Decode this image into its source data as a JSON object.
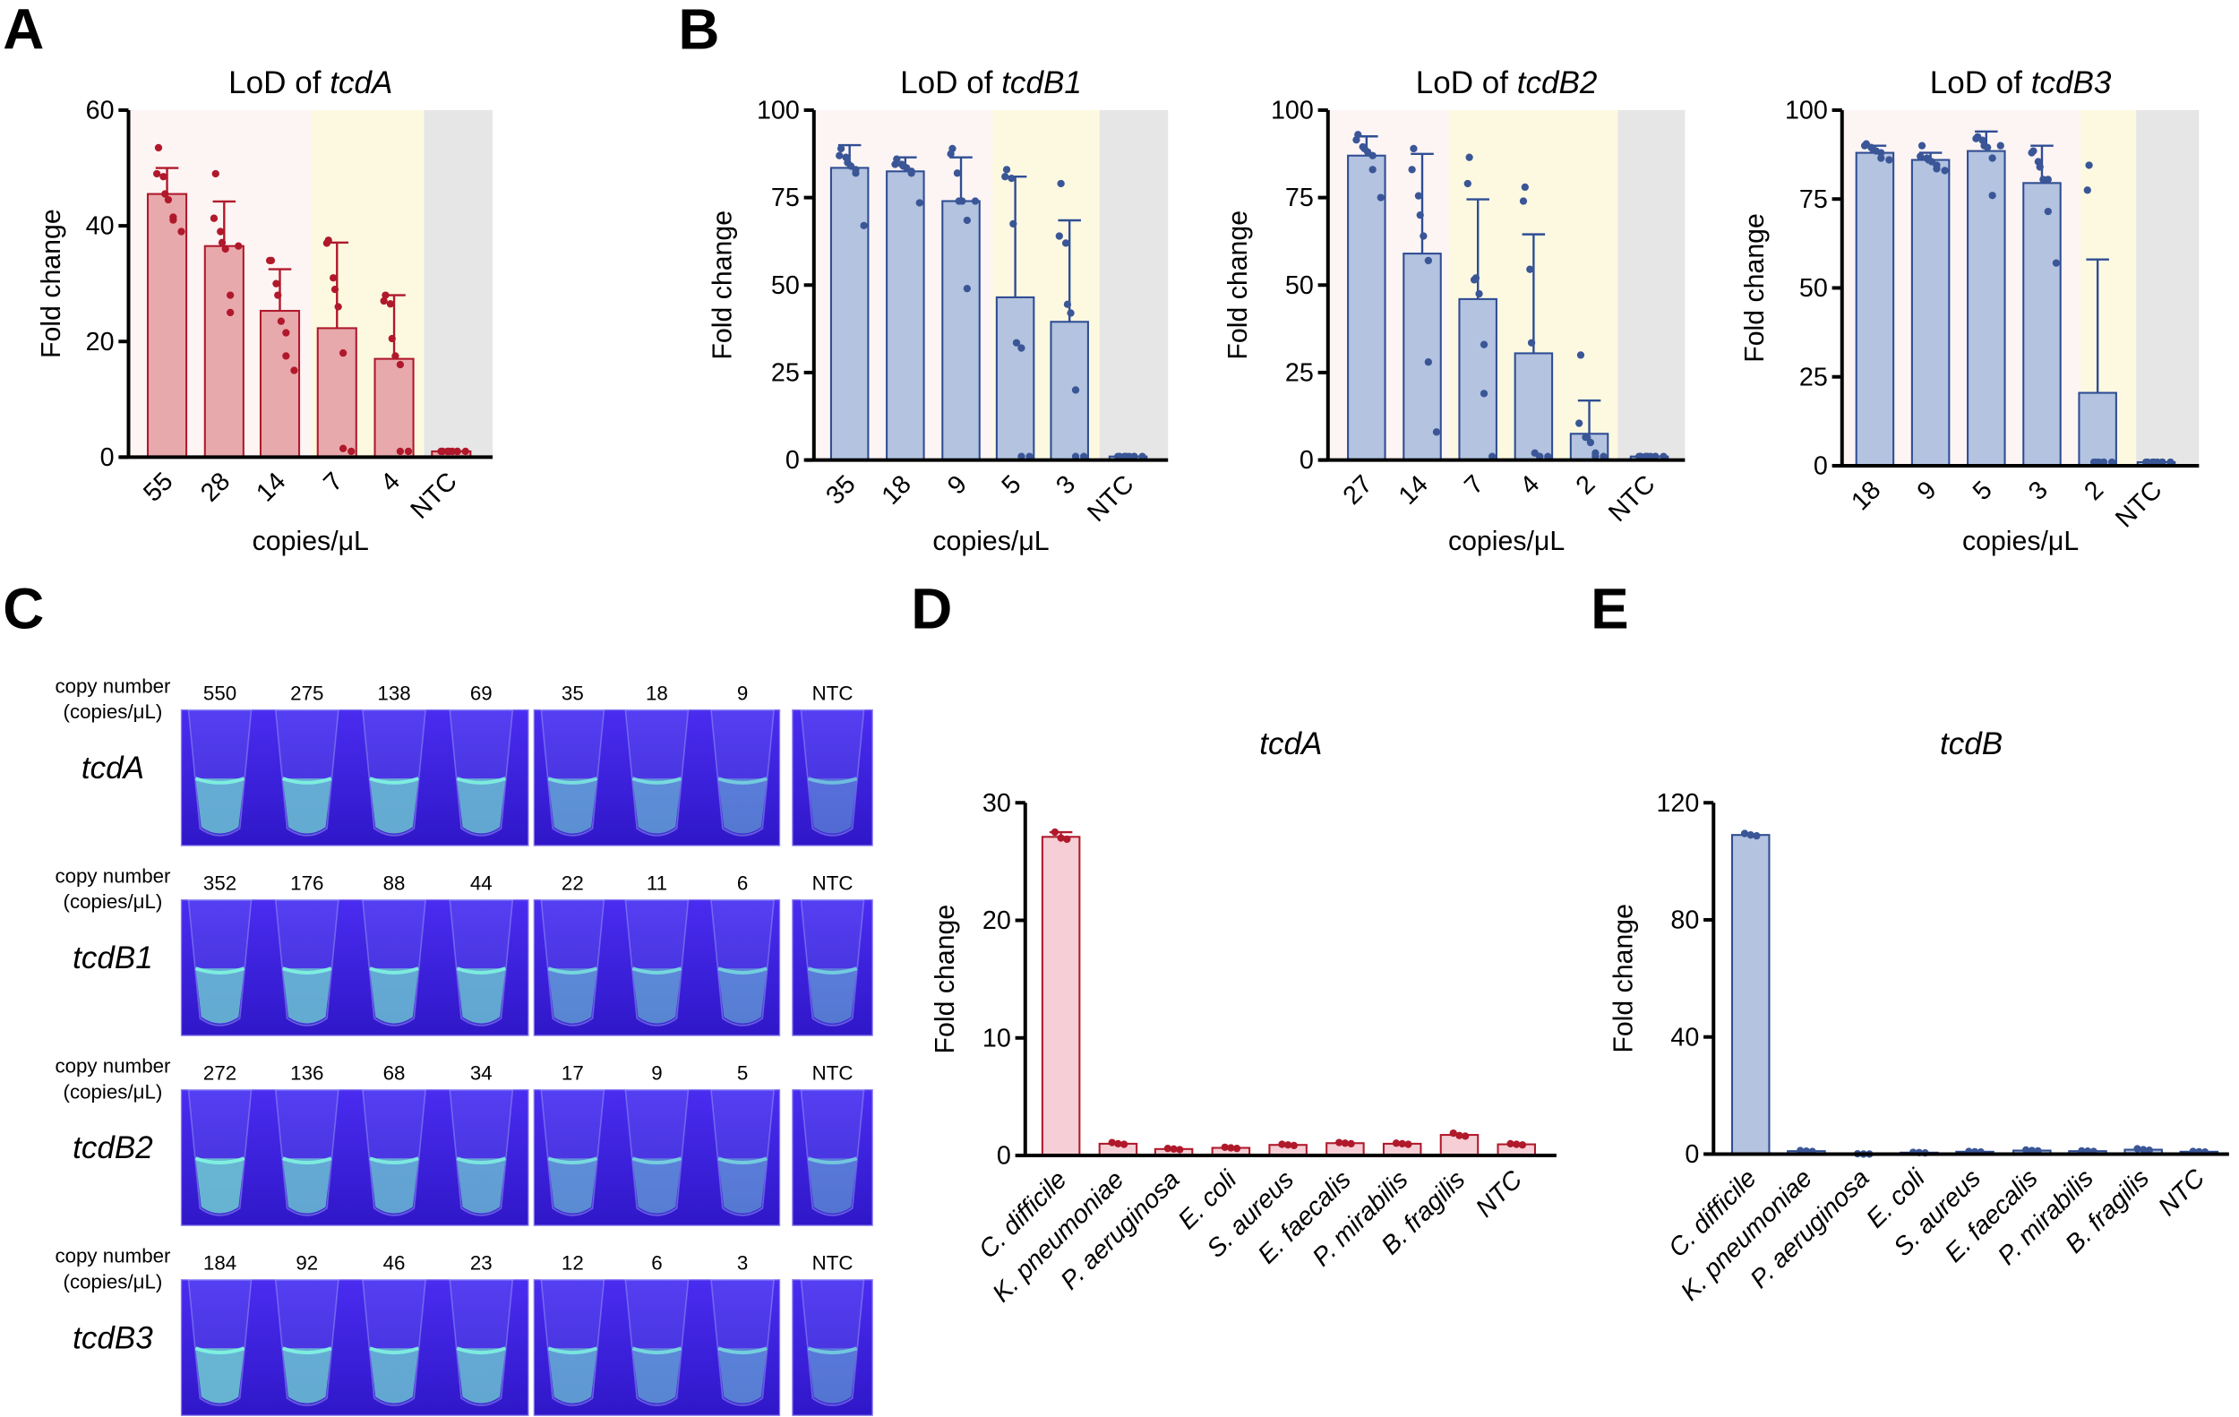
{
  "panel_letters": {
    "A": "A",
    "B": "B",
    "C": "C",
    "D": "D",
    "E": "E"
  },
  "colors": {
    "red_bar": "#e8a9ac",
    "red_line": "#b0192b",
    "pink_bar": "#f5cfd5",
    "blue_bar": "#b3c3e0",
    "blue_line": "#2f4d93",
    "blue_dot": "#3a5697",
    "band_pink": "#fdf4f4",
    "band_yellow": "#fdf9e1",
    "band_grey": "#e6e6e6",
    "uv_bg": "#3d22e6",
    "fluor": "#6fd6d0"
  },
  "chart_data": [
    {
      "id": "A",
      "type": "bar",
      "title_prefix": "LoD of ",
      "title_gene": "tcdA",
      "xlabel": "copies/μL",
      "ylabel": "Fold change",
      "ylim": [
        0,
        60
      ],
      "yticks": [
        "0",
        "20",
        "40",
        "60"
      ],
      "color": "red",
      "categories": [
        "55",
        "28",
        "14",
        "7",
        "4",
        "NTC"
      ],
      "values": [
        45.5,
        36.5,
        25.3,
        22.3,
        17,
        1
      ],
      "error_upper": [
        50,
        44.2,
        32.5,
        37.1,
        28,
        null
      ],
      "points": [
        [
          53.5,
          49,
          48.5,
          45.5,
          44.5,
          41.5,
          41,
          39
        ],
        [
          49,
          41.3,
          39,
          37.1,
          36,
          28,
          25,
          36.5
        ],
        [
          34,
          34,
          30,
          28,
          23.5,
          21.5,
          17.5,
          15
        ],
        [
          37.5,
          37,
          31,
          29,
          26,
          18,
          1.5,
          1
        ],
        [
          28,
          27,
          26.5,
          20.5,
          17.5,
          16,
          1,
          1
        ],
        [
          1,
          1,
          1,
          1,
          1,
          1,
          1,
          1
        ]
      ],
      "shading": [
        "positive",
        "positive",
        "positive",
        "marginal",
        "marginal",
        "ntc"
      ]
    },
    {
      "id": "B1",
      "type": "bar",
      "title_prefix": "LoD of ",
      "title_gene": "tcdB1",
      "xlabel": "copies/μL",
      "ylabel": "Fold change",
      "ylim": [
        0,
        100
      ],
      "yticks": [
        "0",
        "25",
        "50",
        "75",
        "100"
      ],
      "color": "blue",
      "categories": [
        "35",
        "18",
        "9",
        "5",
        "3",
        "NTC"
      ],
      "values": [
        83.5,
        82.5,
        74,
        46.5,
        39.5,
        1
      ],
      "error_upper": [
        90,
        86.5,
        86.5,
        81,
        68.5,
        null
      ],
      "points": [
        [
          89,
          87,
          86.5,
          85,
          84,
          83,
          82,
          67
        ],
        [
          86,
          84.5,
          84.5,
          84,
          83.5,
          82.5,
          82,
          73.5
        ],
        [
          89,
          87.5,
          82,
          74,
          74,
          68.5,
          49,
          74
        ],
        [
          83,
          81,
          80.5,
          67.5,
          33.5,
          32,
          1,
          1
        ],
        [
          79,
          64,
          62,
          44.5,
          42,
          20,
          1,
          1
        ],
        [
          1,
          1,
          1,
          1,
          1,
          1,
          1,
          1
        ]
      ]
    },
    {
      "id": "B2",
      "type": "bar",
      "title_prefix": "LoD of ",
      "title_gene": "tcdB2",
      "xlabel": "copies/μL",
      "ylabel": "Fold change",
      "ylim": [
        0,
        100
      ],
      "yticks": [
        "0",
        "25",
        "50",
        "75",
        "100"
      ],
      "color": "blue",
      "categories": [
        "27",
        "14",
        "7",
        "4",
        "2",
        "NTC"
      ],
      "values": [
        87,
        59,
        46,
        30.5,
        7.5,
        1
      ],
      "error_upper": [
        92.5,
        87.5,
        74.5,
        64.5,
        17,
        null
      ],
      "points": [
        [
          93,
          91.5,
          89.5,
          89,
          88,
          87,
          83,
          75
        ],
        [
          89,
          83,
          75.5,
          70,
          64,
          57,
          28,
          8
        ],
        [
          86.5,
          79,
          51.5,
          52,
          47.5,
          33,
          19,
          1
        ],
        [
          78,
          74,
          54.5,
          33.5,
          2,
          1,
          1,
          1
        ],
        [
          30,
          10.5,
          6.5,
          6.5,
          5,
          2,
          1,
          1
        ],
        [
          1,
          1,
          1,
          1,
          1,
          1,
          1,
          1
        ]
      ]
    },
    {
      "id": "B3",
      "type": "bar",
      "title_prefix": "LoD of ",
      "title_gene": "tcdB3",
      "xlabel": "copies/μL",
      "ylabel": "Fold change",
      "ylim": [
        0,
        100
      ],
      "yticks": [
        "0",
        "25",
        "50",
        "75",
        "100"
      ],
      "color": "blue",
      "categories": [
        "18",
        "9",
        "5",
        "3",
        "2",
        "NTC"
      ],
      "values": [
        88,
        86,
        88.5,
        79.5,
        20.5,
        1
      ],
      "error_upper": [
        90,
        88,
        94,
        90,
        58,
        null
      ],
      "points": [
        [
          90.5,
          90,
          89.5,
          89,
          88.5,
          88,
          86.5,
          86
        ],
        [
          90,
          87,
          86.5,
          86,
          85.5,
          84.5,
          83.5,
          83
        ],
        [
          92.5,
          92,
          91.5,
          90,
          89.5,
          86.5,
          76,
          90
        ],
        [
          88.5,
          88,
          85.5,
          84,
          80.5,
          80.5,
          71.5,
          57
        ],
        [
          84.5,
          77.5,
          1,
          1,
          1,
          1,
          1,
          1
        ],
        [
          1,
          1,
          1,
          1,
          1,
          1,
          1,
          1
        ]
      ]
    },
    {
      "id": "D",
      "type": "bar",
      "title_prefix": "",
      "title_gene": "tcdA",
      "xlabel": "",
      "ylabel": "Fold change",
      "ylim": [
        0,
        30
      ],
      "yticks": [
        "0",
        "10",
        "20",
        "30"
      ],
      "color": "pink",
      "categories": [
        "C. difficile",
        "K. pneumoniae",
        "P. aeruginosa",
        "E. coli",
        "S. aureus",
        "E. faecalis",
        "P. mirabilis",
        "B. fragilis",
        "NTC"
      ],
      "values": [
        27.1,
        1,
        0.55,
        0.65,
        0.9,
        1.05,
        1,
        1.75,
        0.95
      ],
      "error_upper": [
        27.5,
        null,
        null,
        null,
        null,
        null,
        null,
        null,
        null
      ],
      "points": [
        [
          27.5,
          27,
          26.9
        ],
        [
          1.1,
          1,
          0.95
        ],
        [
          0.6,
          0.55,
          0.5
        ],
        [
          0.7,
          0.65,
          0.6
        ],
        [
          0.95,
          0.9,
          0.85
        ],
        [
          1.1,
          1.05,
          1
        ],
        [
          1.05,
          1,
          0.95
        ],
        [
          1.9,
          1.7,
          1.65
        ],
        [
          1,
          0.95,
          0.9
        ]
      ]
    },
    {
      "id": "E",
      "type": "bar",
      "title_prefix": "",
      "title_gene": "tcdB",
      "xlabel": "",
      "ylabel": "Fold change",
      "ylim": [
        0,
        120
      ],
      "yticks": [
        "0",
        "40",
        "80",
        "120"
      ],
      "color": "blue",
      "categories": [
        "C. difficile",
        "K. pneumoniae",
        "P. aeruginosa",
        "E. coli",
        "S. aureus",
        "E. faecalis",
        "P. mirabilis",
        "B. fragilis",
        "NTC"
      ],
      "values": [
        109,
        1,
        0,
        0.5,
        0.8,
        1.2,
        1,
        1.5,
        0.8
      ],
      "error_upper": [
        null,
        null,
        null,
        null,
        null,
        null,
        null,
        null,
        null
      ],
      "points": [
        [
          109.5,
          109,
          108.7
        ],
        [
          1.2,
          1,
          0.9
        ],
        [
          0.1,
          0,
          0
        ],
        [
          0.6,
          0.5,
          0.4
        ],
        [
          0.9,
          0.8,
          0.7
        ],
        [
          1.4,
          1.2,
          1.1
        ],
        [
          1.1,
          1,
          0.9
        ],
        [
          1.8,
          1.5,
          1.3
        ],
        [
          0.9,
          0.8,
          0.7
        ]
      ]
    }
  ],
  "panel_c": {
    "row_label_line1": "copy number",
    "row_label_line2": "(copies/μL)",
    "rows": [
      {
        "gene": "tcdA",
        "numbers": [
          "550",
          "275",
          "138",
          "69",
          "35",
          "18",
          "9",
          "NTC"
        ],
        "fluorescence": [
          0.9,
          0.9,
          0.9,
          0.85,
          0.6,
          0.55,
          0.35,
          0.2
        ]
      },
      {
        "gene": "tcdB1",
        "numbers": [
          "352",
          "176",
          "88",
          "44",
          "22",
          "11",
          "6",
          "NTC"
        ],
        "fluorescence": [
          0.9,
          0.9,
          0.85,
          0.85,
          0.5,
          0.5,
          0.4,
          0.35
        ]
      },
      {
        "gene": "tcdB2",
        "numbers": [
          "272",
          "136",
          "68",
          "34",
          "17",
          "9",
          "5",
          "NTC"
        ],
        "fluorescence": [
          1.0,
          0.85,
          0.8,
          0.75,
          0.55,
          0.4,
          0.35,
          0.3
        ]
      },
      {
        "gene": "tcdB3",
        "numbers": [
          "184",
          "92",
          "46",
          "23",
          "12",
          "6",
          "3",
          "NTC"
        ],
        "fluorescence": [
          1.0,
          0.9,
          0.85,
          0.85,
          0.7,
          0.5,
          0.4,
          0.3
        ]
      }
    ]
  }
}
